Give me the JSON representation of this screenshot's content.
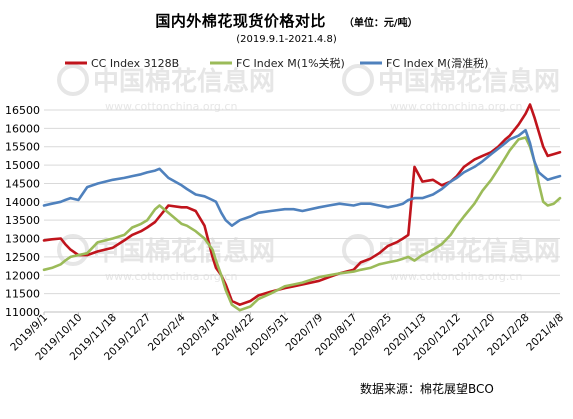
{
  "header": {
    "title": "国内外棉花现货价格对比",
    "unit": "（单位：元/吨）",
    "period": "(2019.9.1-2021.4.8)"
  },
  "source": "数据来源：棉花展望BCO",
  "watermark": {
    "text": "中国棉花信息网",
    "url": "www.cottonchina.org.cn"
  },
  "colors": {
    "cc": "#c0141c",
    "fc1": "#9bbb59",
    "fcs": "#4f81bd",
    "grid": "#d9d9d9",
    "watermark": "#e6e6e6"
  },
  "chart_data": {
    "type": "line",
    "title": "国内外棉花现货价格对比",
    "ylim": [
      11000,
      16500
    ],
    "yticks": [
      11000,
      11500,
      12000,
      12500,
      13000,
      13500,
      14000,
      14500,
      15000,
      15500,
      16000,
      16500
    ],
    "legend_position": "top",
    "x_tick_labels": [
      "2019/9/1",
      "2019/10/10",
      "2019/11/18",
      "2019/12/27",
      "2020/2/4",
      "2020/3/14",
      "2020/4/22",
      "2020/5/31",
      "2020/7/9",
      "2020/8/17",
      "2020/9/25",
      "2020/11/3",
      "2020/12/12",
      "2021/1/20",
      "2021/2/28",
      "2021/4/8"
    ],
    "series": [
      {
        "name": "CC Index 3128B",
        "color": "#c0141c",
        "dates": [
          "2019-09-01",
          "2019-09-10",
          "2019-09-20",
          "2019-09-25",
          "2019-10-01",
          "2019-10-10",
          "2019-10-20",
          "2019-11-01",
          "2019-11-18",
          "2019-12-01",
          "2019-12-10",
          "2019-12-20",
          "2019-12-27",
          "2020-01-05",
          "2020-01-10",
          "2020-01-20",
          "2020-02-04",
          "2020-02-10",
          "2020-02-20",
          "2020-03-01",
          "2020-03-10",
          "2020-03-14",
          "2020-03-20",
          "2020-03-25",
          "2020-04-01",
          "2020-04-10",
          "2020-04-22",
          "2020-05-01",
          "2020-05-15",
          "2020-05-31",
          "2020-06-10",
          "2020-06-20",
          "2020-07-09",
          "2020-07-20",
          "2020-08-01",
          "2020-08-17",
          "2020-08-25",
          "2020-09-05",
          "2020-09-15",
          "2020-09-25",
          "2020-10-05",
          "2020-10-12",
          "2020-10-18",
          "2020-10-25",
          "2020-11-03",
          "2020-11-15",
          "2020-11-25",
          "2020-12-05",
          "2020-12-12",
          "2020-12-20",
          "2021-01-01",
          "2021-01-10",
          "2021-01-20",
          "2021-01-28",
          "2021-02-05",
          "2021-02-10",
          "2021-02-20",
          "2021-02-28",
          "2021-03-05",
          "2021-03-10",
          "2021-03-15",
          "2021-03-20",
          "2021-03-25",
          "2021-04-01",
          "2021-04-08"
        ],
        "values": [
          12950,
          12980,
          13000,
          12850,
          12700,
          12550,
          12550,
          12650,
          12750,
          12950,
          13100,
          13200,
          13300,
          13450,
          13600,
          13900,
          13850,
          13850,
          13750,
          13350,
          12500,
          12200,
          12000,
          11750,
          11300,
          11200,
          11300,
          11450,
          11550,
          11650,
          11700,
          11750,
          11850,
          11950,
          12050,
          12150,
          12350,
          12450,
          12600,
          12800,
          12900,
          13000,
          13100,
          14950,
          14550,
          14600,
          14450,
          14550,
          14700,
          14950,
          15150,
          15250,
          15350,
          15500,
          15700,
          15800,
          16100,
          16400,
          16650,
          16300,
          15900,
          15500,
          15250,
          15300,
          15350
        ]
      },
      {
        "name": "FC Index M(1%关税)",
        "color": "#9bbb59",
        "dates": [
          "2019-09-01",
          "2019-09-10",
          "2019-09-20",
          "2019-09-25",
          "2019-10-01",
          "2019-10-10",
          "2019-10-20",
          "2019-11-01",
          "2019-11-18",
          "2019-12-01",
          "2019-12-10",
          "2019-12-20",
          "2019-12-27",
          "2020-01-05",
          "2020-01-10",
          "2020-01-20",
          "2020-02-04",
          "2020-02-10",
          "2020-02-20",
          "2020-03-01",
          "2020-03-10",
          "2020-03-14",
          "2020-03-20",
          "2020-03-25",
          "2020-04-01",
          "2020-04-10",
          "2020-04-22",
          "2020-05-01",
          "2020-05-15",
          "2020-05-31",
          "2020-06-10",
          "2020-06-20",
          "2020-07-09",
          "2020-07-20",
          "2020-08-01",
          "2020-08-17",
          "2020-08-25",
          "2020-09-05",
          "2020-09-15",
          "2020-09-25",
          "2020-10-05",
          "2020-10-12",
          "2020-10-18",
          "2020-10-25",
          "2020-11-03",
          "2020-11-15",
          "2020-11-25",
          "2020-12-05",
          "2020-12-12",
          "2020-12-20",
          "2021-01-01",
          "2021-01-10",
          "2021-01-20",
          "2021-01-28",
          "2021-02-05",
          "2021-02-10",
          "2021-02-20",
          "2021-02-28",
          "2021-03-05",
          "2021-03-10",
          "2021-03-15",
          "2021-03-20",
          "2021-03-25",
          "2021-04-01",
          "2021-04-08"
        ],
        "values": [
          12150,
          12200,
          12300,
          12400,
          12500,
          12550,
          12600,
          12900,
          13000,
          13100,
          13300,
          13400,
          13500,
          13800,
          13900,
          13700,
          13400,
          13350,
          13200,
          13000,
          12700,
          12400,
          12000,
          11600,
          11200,
          11050,
          11150,
          11350,
          11500,
          11700,
          11750,
          11800,
          11950,
          12000,
          12050,
          12100,
          12150,
          12200,
          12300,
          12350,
          12400,
          12450,
          12500,
          12400,
          12550,
          12700,
          12850,
          13100,
          13350,
          13600,
          13950,
          14300,
          14600,
          14900,
          15200,
          15400,
          15700,
          15750,
          15500,
          15100,
          14500,
          14000,
          13900,
          13950,
          14100
        ]
      },
      {
        "name": "FC Index M(滑准税)",
        "color": "#4f81bd",
        "dates": [
          "2019-09-01",
          "2019-09-10",
          "2019-09-20",
          "2019-09-25",
          "2019-10-01",
          "2019-10-10",
          "2019-10-20",
          "2019-11-01",
          "2019-11-18",
          "2019-12-01",
          "2019-12-10",
          "2019-12-20",
          "2019-12-27",
          "2020-01-05",
          "2020-01-10",
          "2020-01-20",
          "2020-02-04",
          "2020-02-10",
          "2020-02-20",
          "2020-03-01",
          "2020-03-10",
          "2020-03-14",
          "2020-03-20",
          "2020-03-25",
          "2020-04-01",
          "2020-04-10",
          "2020-04-22",
          "2020-05-01",
          "2020-05-15",
          "2020-05-31",
          "2020-06-10",
          "2020-06-20",
          "2020-07-09",
          "2020-07-20",
          "2020-08-01",
          "2020-08-17",
          "2020-08-25",
          "2020-09-05",
          "2020-09-15",
          "2020-09-25",
          "2020-10-05",
          "2020-10-12",
          "2020-10-18",
          "2020-10-25",
          "2020-11-03",
          "2020-11-15",
          "2020-11-25",
          "2020-12-05",
          "2020-12-12",
          "2020-12-20",
          "2021-01-01",
          "2021-01-10",
          "2021-01-20",
          "2021-01-28",
          "2021-02-05",
          "2021-02-10",
          "2021-02-20",
          "2021-02-28",
          "2021-03-05",
          "2021-03-10",
          "2021-03-15",
          "2021-03-20",
          "2021-03-25",
          "2021-04-01",
          "2021-04-08"
        ],
        "values": [
          13900,
          13950,
          14000,
          14050,
          14100,
          14050,
          14400,
          14500,
          14600,
          14650,
          14700,
          14750,
          14800,
          14850,
          14900,
          14650,
          14450,
          14350,
          14200,
          14150,
          14050,
          14000,
          13700,
          13500,
          13350,
          13500,
          13600,
          13700,
          13750,
          13800,
          13800,
          13750,
          13850,
          13900,
          13950,
          13900,
          13950,
          13950,
          13900,
          13850,
          13900,
          13950,
          14050,
          14100,
          14100,
          14200,
          14350,
          14550,
          14650,
          14800,
          14950,
          15100,
          15300,
          15450,
          15600,
          15700,
          15800,
          15950,
          15600,
          15100,
          14800,
          14700,
          14600,
          14650,
          14700
        ]
      }
    ]
  }
}
